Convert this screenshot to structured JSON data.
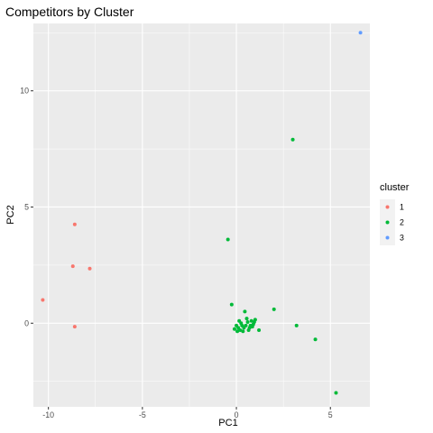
{
  "chart_data": {
    "type": "scatter",
    "title": "Competitors by Cluster",
    "xlabel": "PC1",
    "ylabel": "PC2",
    "xlim": [
      -10.8,
      7.1
    ],
    "ylim": [
      -3.6,
      12.9
    ],
    "x_ticks": [
      -10,
      -5,
      0,
      5
    ],
    "y_ticks": [
      0,
      5,
      10
    ],
    "grid": true,
    "background": "#ebebeb",
    "legend": {
      "title": "cluster",
      "position": "right"
    },
    "series": [
      {
        "name": "1",
        "color": "#F8766D",
        "points": [
          {
            "x": -10.3,
            "y": 1.0
          },
          {
            "x": -8.6,
            "y": 4.25
          },
          {
            "x": -8.7,
            "y": 2.45
          },
          {
            "x": -7.8,
            "y": 2.35
          },
          {
            "x": -8.6,
            "y": -0.15
          }
        ]
      },
      {
        "name": "2",
        "color": "#00BA38",
        "points": [
          {
            "x": 3.0,
            "y": 7.9
          },
          {
            "x": -0.45,
            "y": 3.6
          },
          {
            "x": -0.25,
            "y": 0.8
          },
          {
            "x": 0.45,
            "y": 0.5
          },
          {
            "x": 2.0,
            "y": 0.6
          },
          {
            "x": 3.2,
            "y": -0.1
          },
          {
            "x": 4.2,
            "y": -0.7
          },
          {
            "x": 5.3,
            "y": -3.0
          },
          {
            "x": 1.2,
            "y": -0.3
          },
          {
            "x": 0.0,
            "y": -0.1
          },
          {
            "x": 0.1,
            "y": -0.2
          },
          {
            "x": 0.2,
            "y": -0.3
          },
          {
            "x": 0.3,
            "y": -0.1
          },
          {
            "x": 0.05,
            "y": -0.35
          },
          {
            "x": 0.25,
            "y": 0.0
          },
          {
            "x": 0.4,
            "y": -0.2
          },
          {
            "x": 0.15,
            "y": 0.1
          },
          {
            "x": -0.1,
            "y": -0.25
          },
          {
            "x": 0.35,
            "y": -0.35
          },
          {
            "x": 0.5,
            "y": -0.1
          },
          {
            "x": 0.6,
            "y": 0.05
          },
          {
            "x": 0.7,
            "y": -0.2
          },
          {
            "x": 0.8,
            "y": 0.1
          },
          {
            "x": 0.9,
            "y": -0.05
          },
          {
            "x": 1.0,
            "y": 0.15
          },
          {
            "x": 0.85,
            "y": -0.15
          },
          {
            "x": 0.55,
            "y": 0.2
          },
          {
            "x": 0.65,
            "y": -0.3
          },
          {
            "x": 0.95,
            "y": 0.05
          },
          {
            "x": 0.75,
            "y": -0.1
          }
        ]
      },
      {
        "name": "3",
        "color": "#619CFF",
        "points": [
          {
            "x": 6.6,
            "y": 12.5
          }
        ]
      }
    ]
  }
}
